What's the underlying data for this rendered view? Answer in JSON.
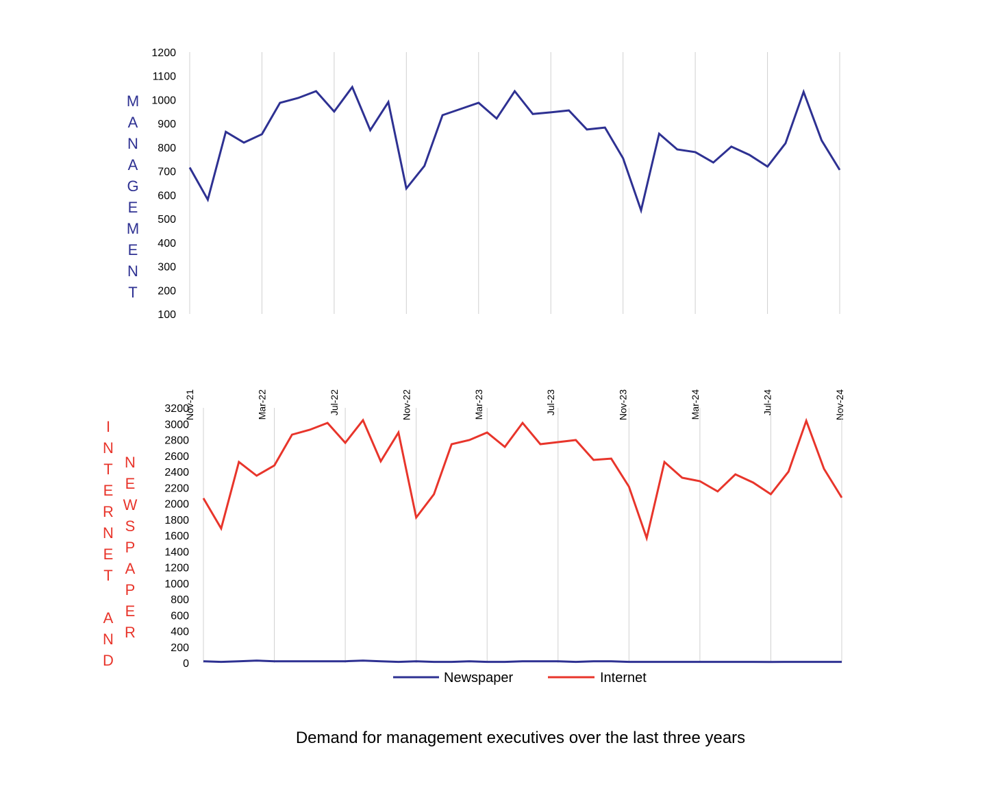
{
  "colors": {
    "management": "#2e3192",
    "newspaper": "#2e3192",
    "internet": "#e8352b",
    "grid": "#d0d0d0",
    "text": "#000000"
  },
  "chart_data": [
    {
      "type": "line",
      "name": "management",
      "ylabel": "MANAGEMENT",
      "ylim": [
        100,
        1200
      ],
      "yticks": [
        "100",
        "200",
        "300",
        "400",
        "500",
        "600",
        "700",
        "800",
        "900",
        "1000",
        "1100",
        "1200"
      ],
      "ytick_values": [
        100,
        200,
        300,
        400,
        500,
        600,
        700,
        800,
        900,
        1000,
        1100,
        1200
      ],
      "grid": "vertical",
      "x": [
        "Nov-21",
        "Dec-21",
        "Jan-22",
        "Feb-22",
        "Mar-22",
        "Apr-22",
        "May-22",
        "Jun-22",
        "Jul-22",
        "Aug-22",
        "Sep-22",
        "Oct-22",
        "Nov-22",
        "Dec-22",
        "Jan-23",
        "Feb-23",
        "Mar-23",
        "Apr-23",
        "May-23",
        "Jun-23",
        "Jul-23",
        "Aug-23",
        "Sep-23",
        "Oct-23",
        "Nov-23",
        "Dec-23",
        "Jan-24",
        "Feb-24",
        "Mar-24",
        "Apr-24",
        "May-24",
        "Jun-24",
        "Jul-24",
        "Aug-24",
        "Sep-24",
        "Oct-24",
        "Nov-24"
      ],
      "xticks": [
        "Nov-21",
        "Mar-22",
        "Jul-22",
        "Nov-22",
        "Mar-23",
        "Jul-23",
        "Nov-23",
        "Mar-24",
        "Jul-24",
        "Nov-24"
      ],
      "series": [
        {
          "name": "Management",
          "values": [
            715,
            580,
            865,
            820,
            855,
            987,
            1007,
            1036,
            950,
            1053,
            872,
            990,
            627,
            722,
            935,
            961,
            987,
            921,
            1036,
            940,
            947,
            955,
            875,
            883,
            754,
            535,
            857,
            791,
            780,
            736,
            803,
            768,
            719,
            817,
            1033,
            829,
            705
          ]
        }
      ]
    },
    {
      "type": "line",
      "name": "internet-newspaper",
      "ylabel_left": "INTERNET AND",
      "ylabel_right": "NEWSPAPER",
      "ylim": [
        0,
        3200
      ],
      "yticks": [
        "0",
        "200",
        "400",
        "600",
        "800",
        "1000",
        "1200",
        "1400",
        "1600",
        "1800",
        "2000",
        "2200",
        "2400",
        "2600",
        "2800",
        "3000",
        "3200"
      ],
      "ytick_values": [
        0,
        200,
        400,
        600,
        800,
        1000,
        1200,
        1400,
        1600,
        1800,
        2000,
        2200,
        2400,
        2600,
        2800,
        3000,
        3200
      ],
      "grid": "vertical",
      "legend": "bottom",
      "series": [
        {
          "name": "Newspaper",
          "values": [
            20,
            12,
            20,
            28,
            20,
            20,
            20,
            20,
            20,
            28,
            20,
            12,
            20,
            12,
            12,
            20,
            12,
            12,
            20,
            20,
            20,
            12,
            20,
            20,
            12,
            12,
            12,
            12,
            12,
            12,
            12,
            12,
            10,
            12,
            12,
            12,
            12
          ]
        },
        {
          "name": "Internet",
          "values": [
            2065,
            1686,
            2520,
            2348,
            2477,
            2864,
            2925,
            3011,
            2761,
            3045,
            2529,
            2890,
            1824,
            2116,
            2744,
            2796,
            2890,
            2710,
            3011,
            2744,
            2770,
            2796,
            2546,
            2563,
            2211,
            1566,
            2520,
            2323,
            2280,
            2151,
            2366,
            2262,
            2116,
            2400,
            3037,
            2434,
            2073
          ]
        }
      ]
    }
  ],
  "title": "Demand for management executives over the last three years"
}
